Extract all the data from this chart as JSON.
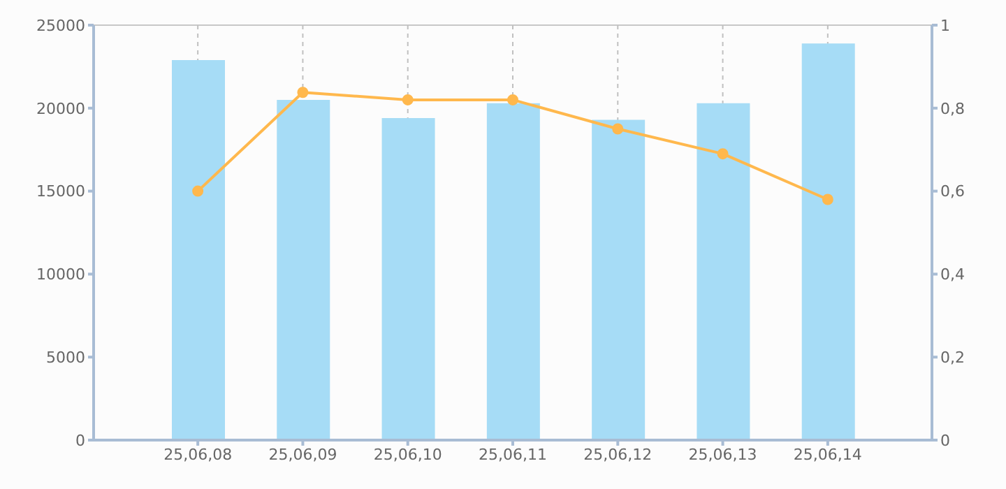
{
  "chart_data": {
    "type": "bar",
    "categories": [
      "25,06,08",
      "25,06,09",
      "25,06,10",
      "25,06,11",
      "25,06,12",
      "25,06,13",
      "25,06,14"
    ],
    "series": [
      {
        "color": "#a6dcf6",
        "values": [
          22900,
          20500,
          19400,
          20300,
          19300,
          20300,
          23900
        ]
      },
      {
        "type": "line",
        "axis": "y2",
        "color": "#ffb84d",
        "values": [
          0.6,
          0.838,
          0.82,
          0.82,
          0.75,
          0.69,
          0.58
        ]
      }
    ],
    "ylim": [
      0,
      25000
    ],
    "yticks": [
      0,
      5000,
      10000,
      15000,
      20000,
      25000
    ],
    "y2lim": [
      0,
      1
    ],
    "y2ticks": [
      0,
      {
        "value": 0.2,
        "label": "0,2"
      },
      {
        "value": 0.4,
        "label": "0,4"
      },
      {
        "value": 0.6,
        "label": "0,6"
      },
      {
        "value": 0.8,
        "label": "0,8"
      },
      1
    ],
    "grid": true,
    "marker": "circle",
    "line_style": "solid"
  }
}
